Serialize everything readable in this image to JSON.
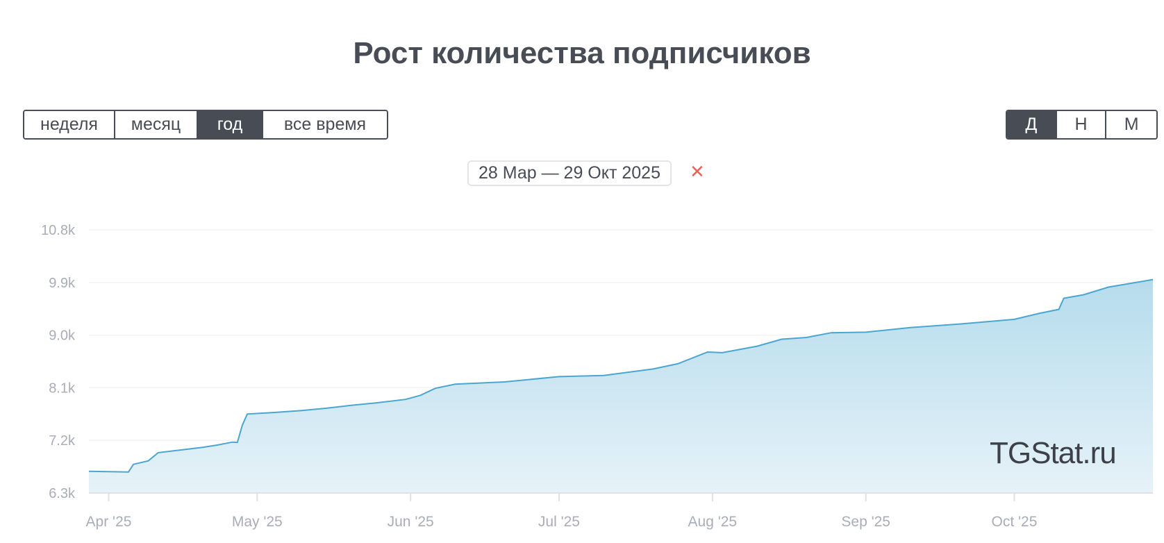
{
  "title": "Рост количества подписчиков",
  "range_buttons": [
    {
      "label": "неделя",
      "active": false
    },
    {
      "label": "месяц",
      "active": false
    },
    {
      "label": "год",
      "active": true
    },
    {
      "label": "все время",
      "active": false
    }
  ],
  "granularity_buttons": [
    {
      "label": "Д",
      "active": true
    },
    {
      "label": "Н",
      "active": false
    },
    {
      "label": "М",
      "active": false
    }
  ],
  "date_filter": {
    "label": "28 Мар — 29 Окт 2025",
    "close_icon": "close-icon"
  },
  "watermark": "TGStat.ru",
  "colors": {
    "line": "#4aa5d0",
    "fill": "#b5dcec",
    "active_button": "#474c55",
    "close": "#e8625a"
  },
  "chart_data": {
    "type": "area",
    "x_range": [
      "2025-03-28",
      "2025-10-29"
    ],
    "ylim": [
      6300,
      10800
    ],
    "y_ticks": [
      "6.3k",
      "7.2k",
      "8.1k",
      "9.0k",
      "9.9k",
      "10.8k"
    ],
    "y_tick_values": [
      6300,
      7200,
      8100,
      9000,
      9900,
      10800
    ],
    "x_ticks": [
      {
        "date": "2025-04-01",
        "label": "Apr '25"
      },
      {
        "date": "2025-05-01",
        "label": "May '25"
      },
      {
        "date": "2025-06-01",
        "label": "Jun '25"
      },
      {
        "date": "2025-07-01",
        "label": "Jul '25"
      },
      {
        "date": "2025-08-01",
        "label": "Aug '25"
      },
      {
        "date": "2025-09-01",
        "label": "Sep '25"
      },
      {
        "date": "2025-10-01",
        "label": "Oct '25"
      }
    ],
    "grid": true,
    "series": [
      {
        "points": [
          [
            "2025-03-28",
            6670
          ],
          [
            "2025-04-05",
            6660
          ],
          [
            "2025-04-06",
            6790
          ],
          [
            "2025-04-09",
            6850
          ],
          [
            "2025-04-11",
            6990
          ],
          [
            "2025-04-15",
            7030
          ],
          [
            "2025-04-20",
            7080
          ],
          [
            "2025-04-23",
            7120
          ],
          [
            "2025-04-26",
            7170
          ],
          [
            "2025-04-27",
            7165
          ],
          [
            "2025-04-28",
            7460
          ],
          [
            "2025-04-29",
            7650
          ],
          [
            "2025-05-05",
            7680
          ],
          [
            "2025-05-10",
            7710
          ],
          [
            "2025-05-15",
            7750
          ],
          [
            "2025-05-20",
            7800
          ],
          [
            "2025-05-25",
            7840
          ],
          [
            "2025-05-31",
            7900
          ],
          [
            "2025-06-03",
            7970
          ],
          [
            "2025-06-06",
            8090
          ],
          [
            "2025-06-10",
            8160
          ],
          [
            "2025-06-20",
            8200
          ],
          [
            "2025-07-01",
            8290
          ],
          [
            "2025-07-10",
            8310
          ],
          [
            "2025-07-20",
            8420
          ],
          [
            "2025-07-25",
            8510
          ],
          [
            "2025-07-31",
            8710
          ],
          [
            "2025-08-03",
            8700
          ],
          [
            "2025-08-10",
            8810
          ],
          [
            "2025-08-15",
            8930
          ],
          [
            "2025-08-20",
            8960
          ],
          [
            "2025-08-25",
            9040
          ],
          [
            "2025-09-01",
            9050
          ],
          [
            "2025-09-10",
            9130
          ],
          [
            "2025-09-20",
            9190
          ],
          [
            "2025-10-01",
            9270
          ],
          [
            "2025-10-06",
            9370
          ],
          [
            "2025-10-10",
            9440
          ],
          [
            "2025-10-11",
            9630
          ],
          [
            "2025-10-15",
            9690
          ],
          [
            "2025-10-20",
            9820
          ],
          [
            "2025-10-29",
            9950
          ]
        ]
      }
    ]
  }
}
